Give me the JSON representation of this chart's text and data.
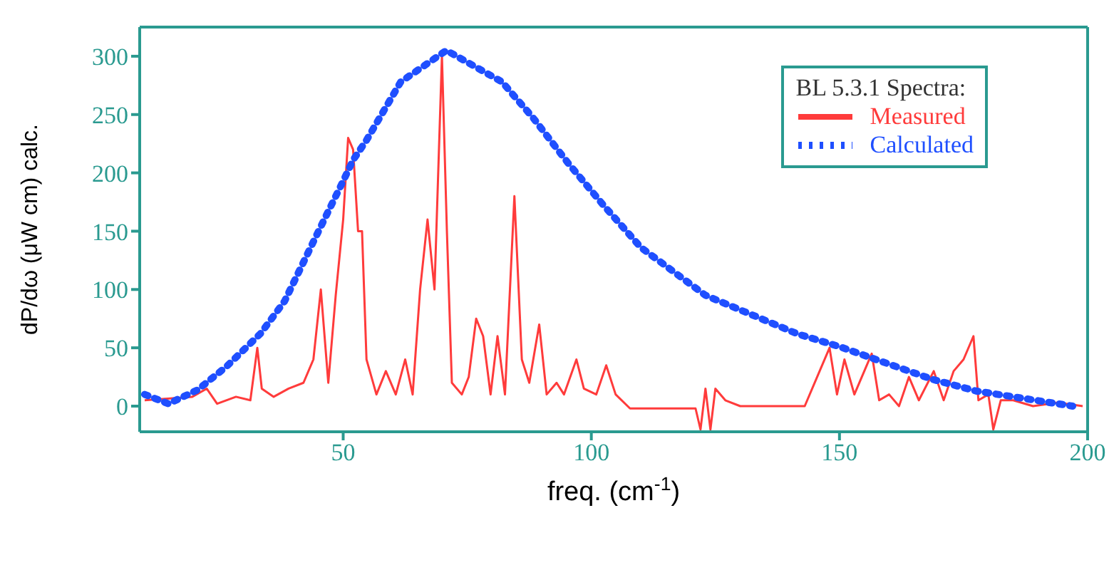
{
  "chart_data": {
    "type": "line",
    "xlabel": "freq. (cm$^{-1}$)",
    "ylabel": "dP/dω (μW cm) calc.",
    "legend_title": "BL 5.3.1 Spectra:",
    "legend": "top right",
    "marker": "none",
    "xlim": [
      9,
      200
    ],
    "ylim": [
      -22,
      325
    ],
    "xticks": [
      50,
      100,
      150,
      200
    ],
    "yticks": [
      0,
      50,
      100,
      150,
      200,
      250,
      300
    ],
    "series": [
      {
        "name": "Measured",
        "color": "#ff3b3b",
        "line_style": "solid",
        "x": [
          10,
          19.6,
          22.5,
          24.6,
          28.4,
          31.3,
          32.7,
          33.6,
          36,
          39,
          42,
          44,
          45.5,
          47,
          48.5,
          50,
          51,
          52,
          53,
          53.8,
          54.7,
          56.7,
          58.6,
          60.6,
          62.5,
          64,
          65.5,
          67,
          68.4,
          69.9,
          70.9,
          71.9,
          73.9,
          75.3,
          76.8,
          78.2,
          79.7,
          81.1,
          82.6,
          84.5,
          86,
          87.5,
          89.5,
          91,
          93,
          94.5,
          97,
          98.5,
          101,
          103,
          104.9,
          107.8,
          121,
          122,
          123,
          124,
          125,
          127,
          130,
          133,
          139,
          143,
          146,
          148,
          149.5,
          151,
          153,
          155,
          156.5,
          158,
          160,
          162,
          164,
          166,
          169,
          171,
          173,
          175,
          177,
          178,
          180,
          181,
          182.5,
          185,
          189,
          194,
          199
        ],
        "values": [
          5,
          8,
          15,
          2,
          8,
          5,
          50,
          15,
          8,
          15,
          20,
          40,
          100,
          20,
          95,
          160,
          230,
          220,
          150,
          150,
          40,
          10,
          30,
          10,
          40,
          10,
          100,
          160,
          100,
          300,
          150,
          20,
          10,
          25,
          75,
          60,
          10,
          60,
          10,
          180,
          40,
          20,
          70,
          10,
          20,
          10,
          40,
          15,
          10,
          35,
          10,
          -2,
          -2,
          -20,
          15,
          -20,
          15,
          5,
          0,
          0,
          0,
          0,
          30,
          50,
          10,
          40,
          10,
          30,
          45,
          5,
          10,
          0,
          25,
          5,
          30,
          5,
          30,
          40,
          60,
          5,
          10,
          -20,
          5,
          5,
          0,
          3,
          0
        ]
      },
      {
        "name": "Calculated",
        "color": "#1f4fff",
        "line_style": "dotted",
        "x": [
          10,
          14.8,
          20.7,
          26.5,
          33.3,
          38.2,
          44,
          50,
          52,
          54.7,
          61.6,
          70.8,
          82,
          88.3,
          95.2,
          102.5,
          110,
          123,
          141.5,
          150,
          168.7,
          177.5,
          197
        ],
        "values": [
          10,
          2,
          14,
          34,
          62,
          90,
          141,
          193,
          211,
          228,
          278,
          305,
          278,
          247,
          209,
          172,
          136,
          95,
          62,
          51,
          23,
          13,
          0
        ]
      }
    ]
  }
}
